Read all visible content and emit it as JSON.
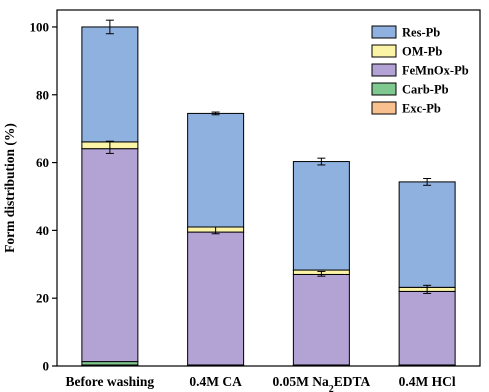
{
  "chart_data": {
    "type": "bar",
    "stacked": true,
    "categories": [
      "Before washing",
      "0.4M CA",
      "0.05M Na2EDTA",
      "0.4M HCl"
    ],
    "category_labels": [
      {
        "parts": [
          {
            "text": "Before washing"
          }
        ]
      },
      {
        "parts": [
          {
            "text": "0.4M CA"
          }
        ]
      },
      {
        "parts": [
          {
            "text": "0.05M Na"
          },
          {
            "text": "2",
            "sub": true
          },
          {
            "text": "EDTA"
          }
        ]
      },
      {
        "parts": [
          {
            "text": "0.4M HCl"
          }
        ]
      }
    ],
    "series": [
      {
        "name": "Exc-Pb",
        "color": "#f9c08f",
        "values": [
          0.3,
          0.1,
          0.1,
          0.1
        ]
      },
      {
        "name": "Carb-Pb",
        "color": "#7fc88f",
        "values": [
          1.0,
          0.2,
          0.2,
          0.2
        ]
      },
      {
        "name": "FeMnOx-Pb",
        "color": "#b3a3d4",
        "values": [
          62.8,
          39.2,
          26.7,
          21.7
        ]
      },
      {
        "name": "OM-Pb",
        "color": "#fbf3a6",
        "values": [
          2.0,
          1.5,
          1.3,
          1.2
        ]
      },
      {
        "name": "Res-Pb",
        "color": "#8fb1e0",
        "values": [
          33.9,
          33.5,
          32.0,
          31.1
        ]
      }
    ],
    "error_bars": [
      {
        "at_total": 100.0,
        "err": 2.0
      },
      {
        "at_total": 74.5,
        "err": 0.4
      },
      {
        "at_total": 60.3,
        "err": 1.0
      },
      {
        "at_total": 54.3,
        "err": 1.0
      }
    ],
    "inner_error_bars": [
      {
        "at": 64.5,
        "err": 1.8
      },
      {
        "at": 40.0,
        "err": 1.0
      },
      {
        "at": 27.2,
        "err": 0.7
      },
      {
        "at": 22.6,
        "err": 1.2
      }
    ],
    "legend_order": [
      "Res-Pb",
      "OM-Pb",
      "FeMnOx-Pb",
      "Carb-Pb",
      "Exc-Pb"
    ],
    "legend_position": "top-right",
    "ylabel": "Form distribution (%)",
    "ylim": [
      0,
      105
    ],
    "yticks": [
      0,
      20,
      40,
      60,
      80,
      100
    ],
    "grid": false
  }
}
